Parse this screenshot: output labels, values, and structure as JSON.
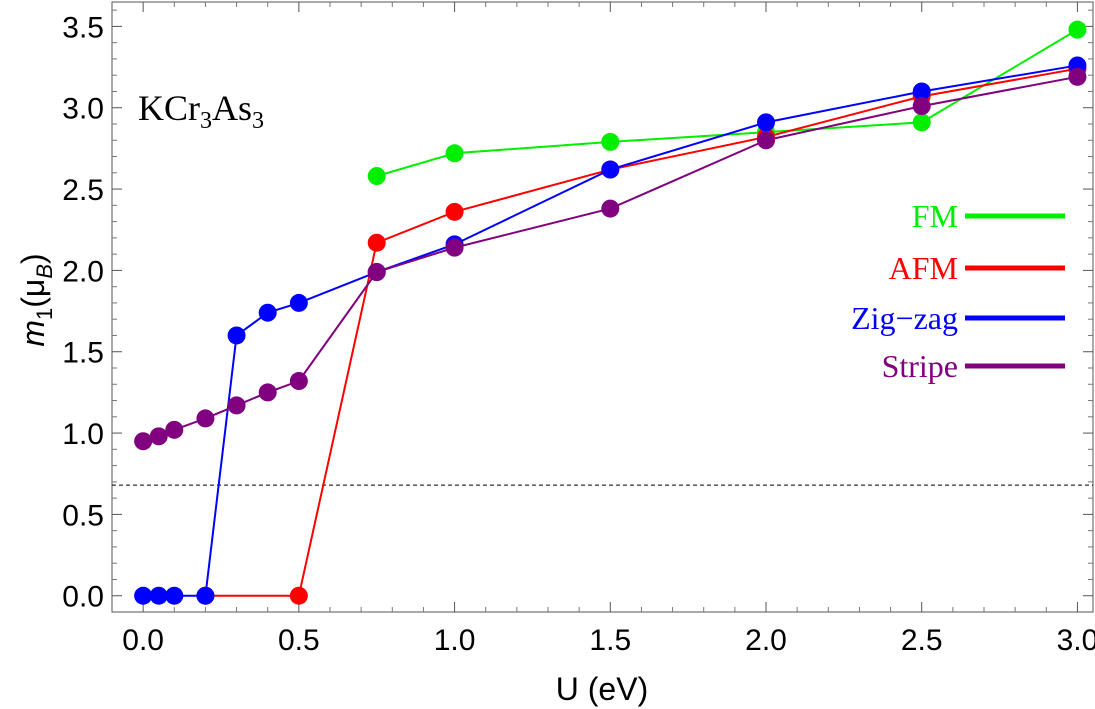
{
  "chart_data": {
    "type": "line",
    "title": "",
    "annotation": {
      "base": "KCr",
      "sub1": "3",
      "mid": "As",
      "sub2": "3"
    },
    "xlabel": "U (eV)",
    "ylabel": {
      "m": "m",
      "m_sub": "1",
      "mu": "μ",
      "mu_sub": "B",
      "open": "(",
      "close": ")"
    },
    "xlim": [
      -0.1,
      3.05
    ],
    "ylim": [
      -0.1,
      3.65
    ],
    "xticks": [
      0.0,
      0.5,
      1.0,
      1.5,
      2.0,
      2.5,
      3.0
    ],
    "xtick_labels": [
      "0.0",
      "0.5",
      "1.0",
      "1.5",
      "2.0",
      "2.5",
      "3.0"
    ],
    "yticks": [
      0.0,
      0.5,
      1.0,
      1.5,
      2.0,
      2.5,
      3.0,
      3.5
    ],
    "ytick_labels": [
      "0.0",
      "0.5",
      "1.0",
      "1.5",
      "2.0",
      "2.5",
      "3.0",
      "3.5"
    ],
    "reference_line": 0.68,
    "legend_position": "right",
    "series": [
      {
        "name": "FM",
        "color": "#00ee00",
        "x": [
          0.75,
          1.0,
          1.5,
          2.0,
          2.5,
          3.0
        ],
        "values": [
          2.58,
          2.72,
          2.79,
          2.85,
          2.91,
          3.48
        ]
      },
      {
        "name": "AFM",
        "color": "#ff0000",
        "x": [
          0.2,
          0.5,
          0.75,
          1.0,
          1.5,
          2.0,
          2.5,
          3.0
        ],
        "values": [
          0.0,
          0.0,
          2.17,
          2.36,
          2.62,
          2.82,
          3.07,
          3.24
        ]
      },
      {
        "name": "Zig−zag",
        "color": "#0000ff",
        "x": [
          0.0,
          0.05,
          0.1,
          0.2,
          0.3,
          0.4,
          0.5,
          0.75,
          1.0,
          1.5,
          2.0,
          2.5,
          3.0
        ],
        "values": [
          0.0,
          0.0,
          0.0,
          0.0,
          1.6,
          1.74,
          1.8,
          1.99,
          2.16,
          2.62,
          2.91,
          3.1,
          3.26
        ]
      },
      {
        "name": "Stripe",
        "color": "#800080",
        "x": [
          0.0,
          0.05,
          0.1,
          0.2,
          0.3,
          0.4,
          0.5,
          0.75,
          1.0,
          1.5,
          2.0,
          2.5,
          3.0
        ],
        "values": [
          0.95,
          0.98,
          1.02,
          1.09,
          1.17,
          1.25,
          1.32,
          1.99,
          2.14,
          2.38,
          2.8,
          3.01,
          3.19
        ]
      }
    ]
  }
}
